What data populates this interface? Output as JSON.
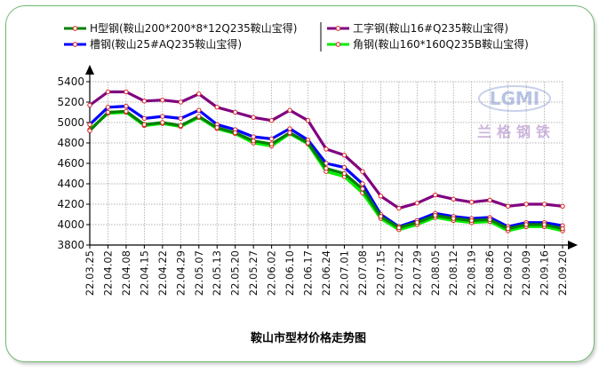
{
  "colors": {
    "background": "#ffffff",
    "card_border": "#6fb86f",
    "grid": "#9a9a9a",
    "axis": "#000000",
    "marker_fill": "#ffffff",
    "marker_stroke": "#d62020"
  },
  "watermark": {
    "logo": "LGMI",
    "text": "兰格钢铁"
  },
  "chart_data": {
    "type": "line",
    "title": "鞍山市型材价格走势图",
    "xlabel": "",
    "ylabel": "",
    "ylim": [
      3800,
      5400
    ],
    "yticks": [
      3800,
      4000,
      4200,
      4400,
      4600,
      4800,
      5000,
      5200,
      5400
    ],
    "grid": true,
    "legend": "top",
    "x": [
      "22.03.25",
      "22.04.02",
      "22.04.08",
      "22.04.15",
      "22.04.22",
      "22.04.29",
      "22.05.07",
      "22.05.13",
      "22.05.20",
      "22.05.27",
      "22.06.02",
      "22.06.10",
      "22.06.17",
      "22.06.24",
      "22.07.01",
      "22.07.08",
      "22.07.15",
      "22.07.22",
      "22.07.29",
      "22.08.05",
      "22.08.12",
      "22.08.19",
      "22.08.26",
      "22.09.02",
      "22.09.09",
      "22.09.16",
      "22.09.20"
    ],
    "series": [
      {
        "name": "H型钢(鞍山200*200*8*12Q235鞍山宝得)",
        "color": "#008000",
        "values": [
          4920,
          5100,
          5110,
          4980,
          5000,
          4970,
          5060,
          4950,
          4900,
          4820,
          4790,
          4900,
          4800,
          4550,
          4500,
          4350,
          4080,
          3970,
          4020,
          4090,
          4060,
          4040,
          4050,
          3960,
          4000,
          4000,
          3960
        ]
      },
      {
        "name": "工字钢(鞍山16#Q235鞍山宝得)",
        "color": "#800080",
        "values": [
          5170,
          5300,
          5300,
          5210,
          5220,
          5200,
          5280,
          5150,
          5100,
          5050,
          5020,
          5120,
          5020,
          4740,
          4680,
          4520,
          4280,
          4160,
          4210,
          4290,
          4250,
          4220,
          4240,
          4180,
          4200,
          4200,
          4180
        ]
      },
      {
        "name": "槽钢(鞍山25#AQ235鞍山宝得)",
        "color": "#0000ff",
        "values": [
          4980,
          5150,
          5160,
          5040,
          5060,
          5040,
          5120,
          4980,
          4930,
          4860,
          4840,
          4940,
          4830,
          4600,
          4560,
          4400,
          4100,
          3980,
          4040,
          4110,
          4080,
          4060,
          4070,
          3980,
          4020,
          4020,
          3990
        ]
      },
      {
        "name": "角钢(鞍山160*160Q235B鞍山宝得)",
        "color": "#00ee00",
        "values": [
          4930,
          5090,
          5100,
          4970,
          4990,
          4960,
          5050,
          4940,
          4890,
          4800,
          4770,
          4890,
          4790,
          4520,
          4470,
          4310,
          4060,
          3950,
          4000,
          4070,
          4040,
          4020,
          4030,
          3940,
          3980,
          3980,
          3940
        ]
      }
    ]
  }
}
